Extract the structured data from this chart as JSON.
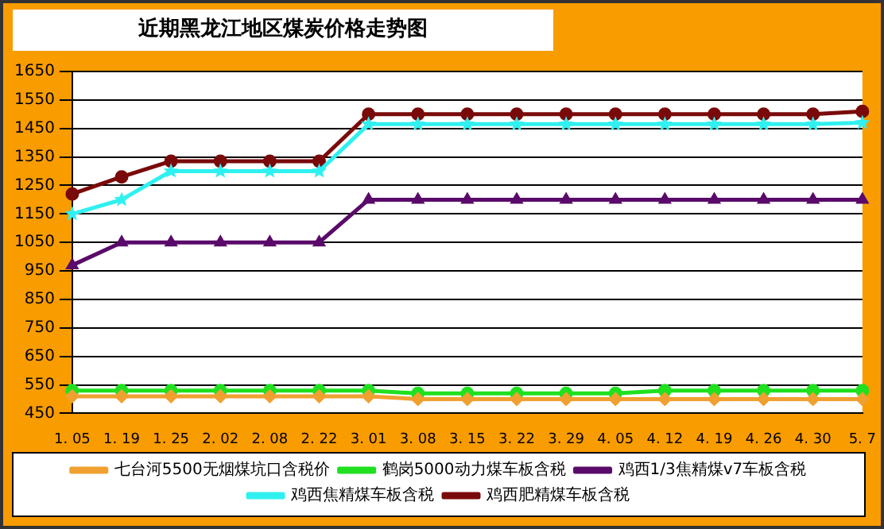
{
  "chart_data": {
    "type": "line",
    "title": "近期黑龙江地区煤炭价格走势图",
    "categories": [
      "1. 05",
      "1. 19",
      "1. 25",
      "2. 02",
      "2. 08",
      "2. 22",
      "3. 01",
      "3. 08",
      "3. 15",
      "3. 22",
      "3. 29",
      "4. 05",
      "4. 12",
      "4. 19",
      "4. 26",
      "4. 30",
      "5. 7"
    ],
    "series": [
      {
        "name": "七台河5500无烟煤坑口含税价",
        "color": "#f0a030",
        "marker": "diamond",
        "values": [
          510,
          510,
          510,
          510,
          510,
          510,
          510,
          500,
          500,
          500,
          500,
          500,
          500,
          500,
          500,
          500,
          500
        ]
      },
      {
        "name": "鹤岗5000动力煤车板含税",
        "color": "#20e020",
        "marker": "circle",
        "values": [
          530,
          530,
          530,
          530,
          530,
          530,
          530,
          520,
          520,
          520,
          520,
          520,
          530,
          530,
          530,
          530,
          530
        ]
      },
      {
        "name": "鸡西1/3焦精煤v7车板含税",
        "color": "#5a0a6a",
        "marker": "triangle",
        "values": [
          970,
          1050,
          1050,
          1050,
          1050,
          1050,
          1200,
          1200,
          1200,
          1200,
          1200,
          1200,
          1200,
          1200,
          1200,
          1200,
          1200
        ]
      },
      {
        "name": "鸡西焦精煤车板含税",
        "color": "#30f0f0",
        "marker": "star",
        "values": [
          1150,
          1200,
          1300,
          1300,
          1300,
          1300,
          1465,
          1465,
          1465,
          1465,
          1465,
          1465,
          1465,
          1465,
          1465,
          1465,
          1470
        ]
      },
      {
        "name": "鸡西肥精煤车板含税",
        "color": "#7a0a0a",
        "marker": "circle",
        "values": [
          1220,
          1280,
          1335,
          1335,
          1335,
          1335,
          1500,
          1500,
          1500,
          1500,
          1500,
          1500,
          1500,
          1500,
          1500,
          1500,
          1510
        ]
      }
    ],
    "ylim": [
      450,
      1650
    ],
    "yticks": [
      450,
      550,
      650,
      750,
      850,
      950,
      1050,
      1150,
      1250,
      1350,
      1450,
      1550,
      1650
    ],
    "grid": "y",
    "legend": "bottom",
    "line_style": "solid"
  }
}
